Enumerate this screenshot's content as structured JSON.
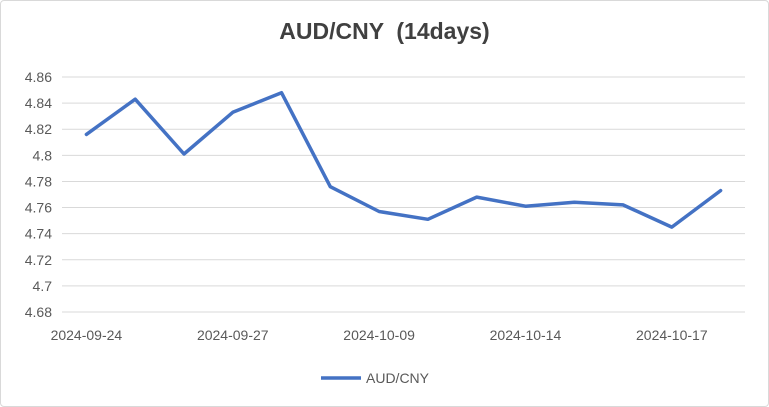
{
  "chart_data": {
    "type": "line",
    "title": "AUD/CNY  (14days)",
    "xlabel": "",
    "ylabel": "",
    "x": [
      "2024-09-24",
      "",
      "",
      "2024-09-27",
      "",
      "",
      "2024-10-09",
      "",
      "",
      "2024-10-14",
      "",
      "",
      "2024-10-17",
      ""
    ],
    "x_tick_labels": [
      "2024-09-24",
      "2024-09-27",
      "2024-10-09",
      "2024-10-14",
      "2024-10-17"
    ],
    "y_tick_labels": [
      "4.86",
      "4.84",
      "4.82",
      "4.8",
      "4.78",
      "4.76",
      "4.74",
      "4.72",
      "4.7",
      "4.68"
    ],
    "ylim": [
      4.68,
      4.86
    ],
    "grid": true,
    "legend_position": "bottom",
    "series": [
      {
        "name": "AUD/CNY",
        "color": "#4472c4",
        "values": [
          4.816,
          4.843,
          4.801,
          4.833,
          4.848,
          4.776,
          4.757,
          4.751,
          4.768,
          4.761,
          4.764,
          4.762,
          4.745,
          4.773
        ]
      }
    ]
  }
}
